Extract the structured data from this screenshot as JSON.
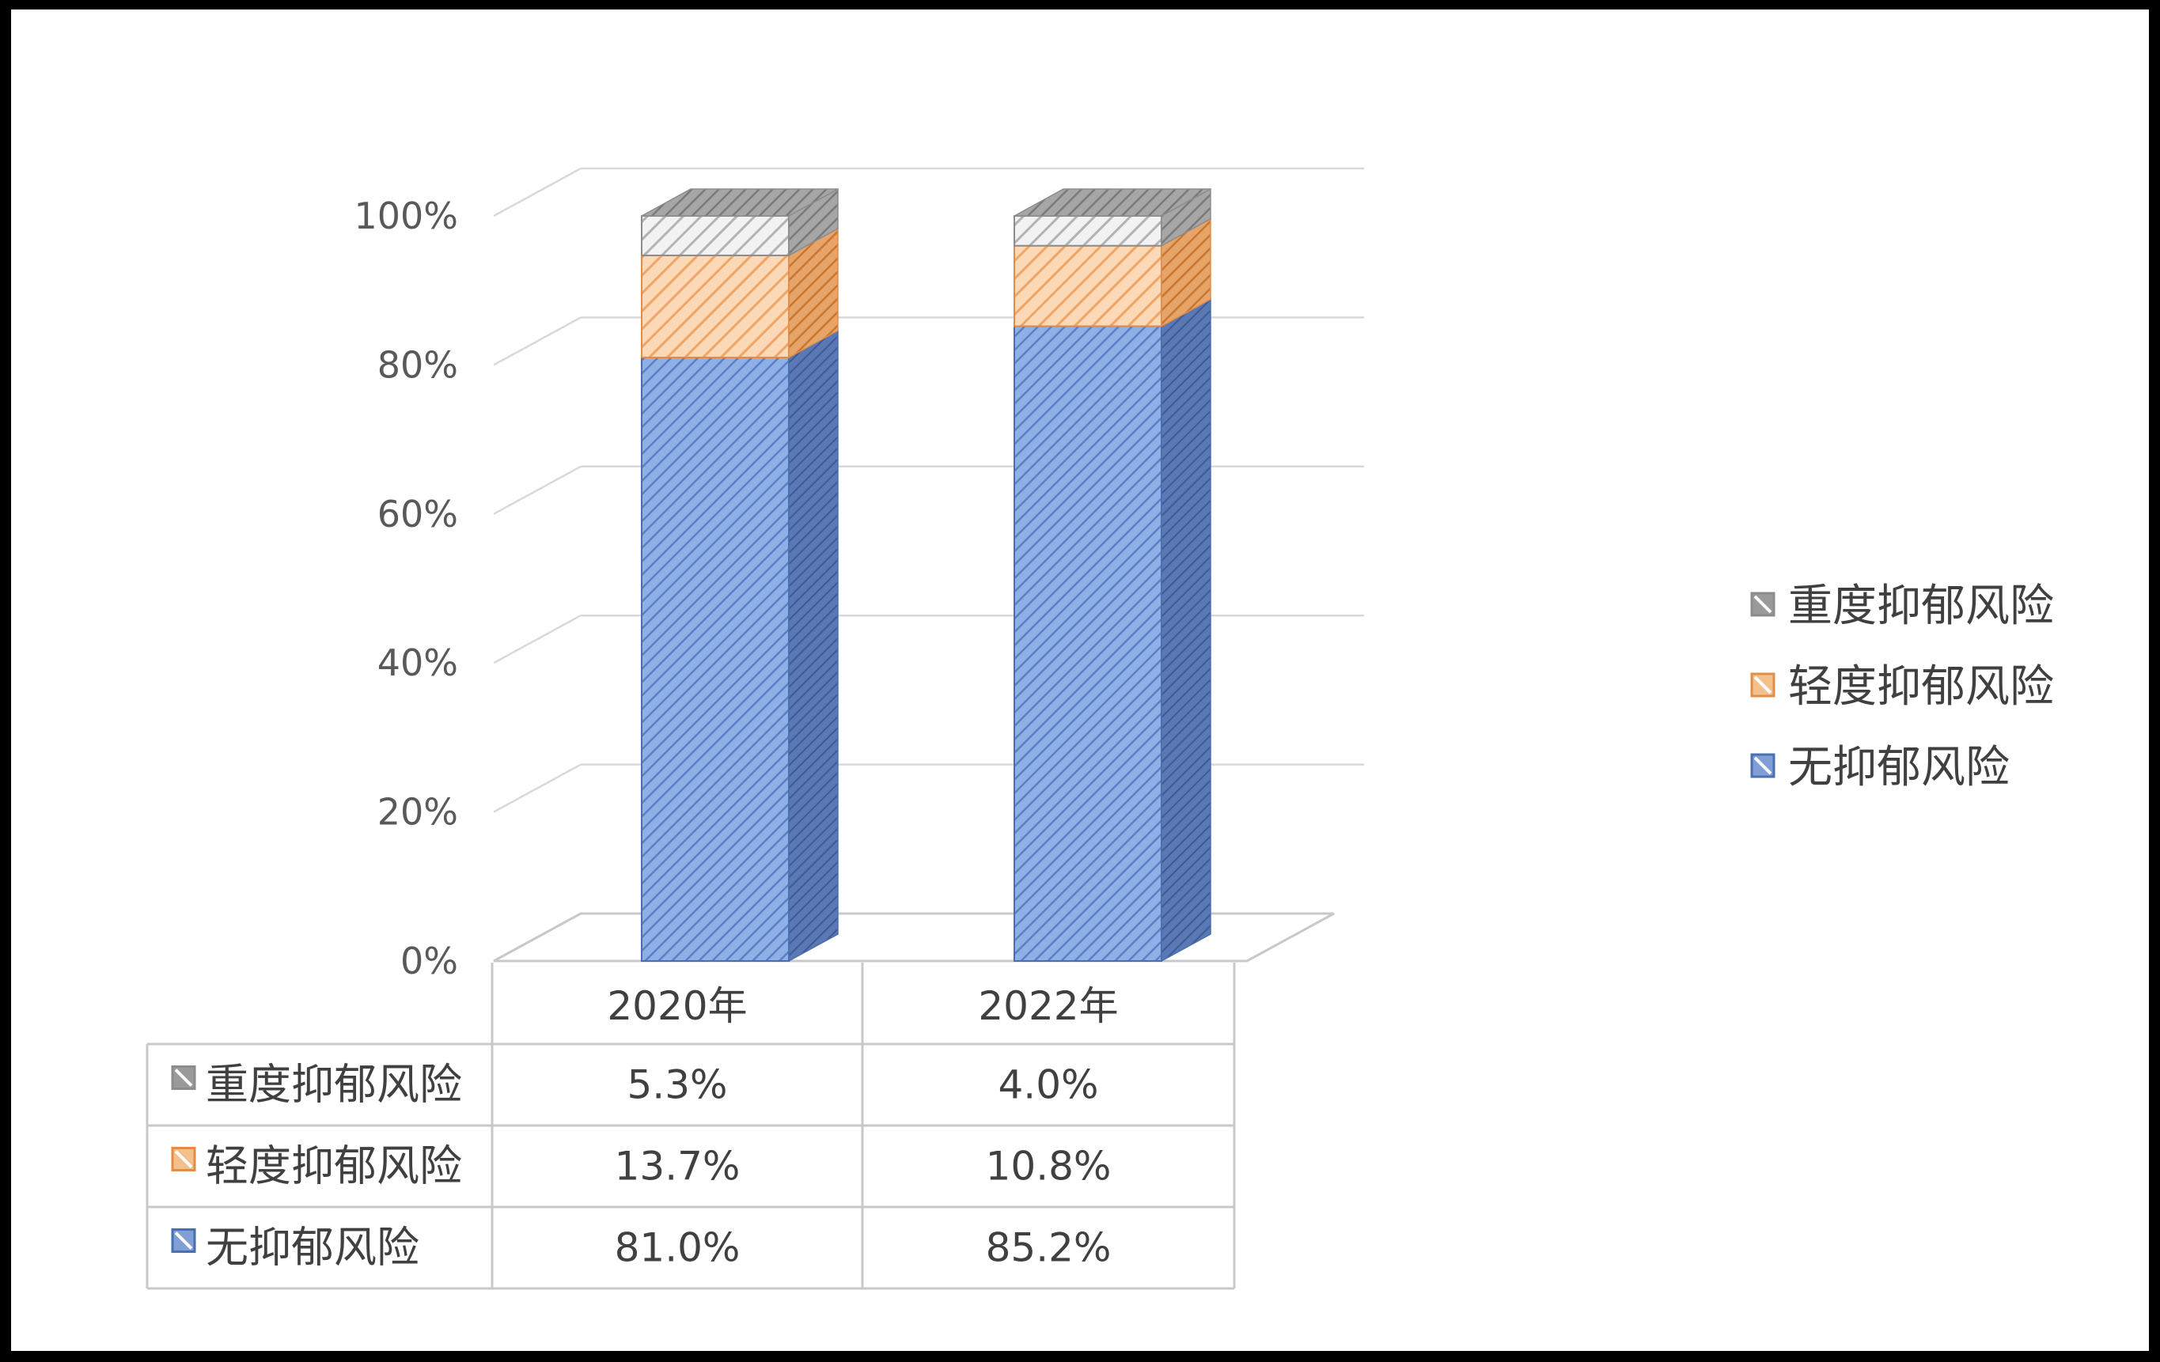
{
  "chart_data": {
    "type": "bar",
    "stacked": true,
    "percent": true,
    "three_d": true,
    "categories": [
      "2020年",
      "2022年"
    ],
    "series": [
      {
        "name": "无抑郁风险",
        "values": [
          81.0,
          85.2
        ],
        "labels": [
          "81.0%",
          "85.2%"
        ],
        "color": "#7f9fd6",
        "dark": "#4a6fb0"
      },
      {
        "name": "轻度抑郁风险",
        "values": [
          13.7,
          10.8
        ],
        "labels": [
          "13.7%",
          "10.8%"
        ],
        "color": "#f4c08c",
        "dark": "#e08d4a"
      },
      {
        "name": "重度抑郁风险",
        "values": [
          5.3,
          4.0
        ],
        "labels": [
          "5.3%",
          "4.0%"
        ],
        "color": "#d9d9d9",
        "dark": "#8c8c8c"
      }
    ],
    "yticks": [
      "0%",
      "20%",
      "40%",
      "60%",
      "80%",
      "100%"
    ],
    "ylim": [
      0,
      100
    ],
    "grid": true,
    "legend": "right",
    "data_table": true
  }
}
